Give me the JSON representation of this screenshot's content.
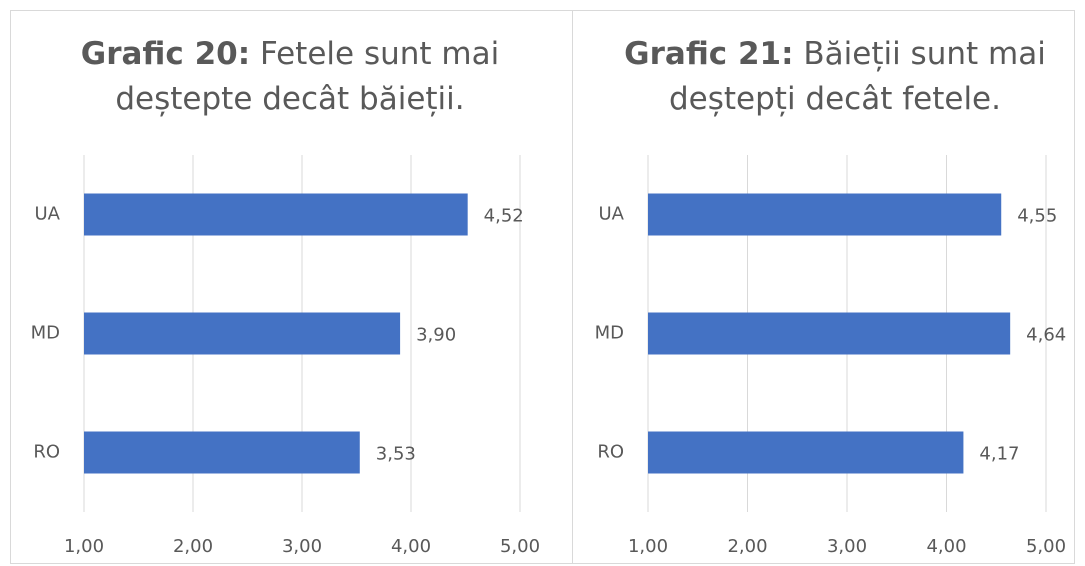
{
  "chart_data": [
    {
      "type": "bar",
      "orientation": "horizontal",
      "title_label": "Grafic 20:",
      "title": "Fetele sunt mai deștepte decât băieții.",
      "categories": [
        "UA",
        "MD",
        "RO"
      ],
      "values": [
        4.52,
        3.9,
        3.53
      ],
      "value_labels": [
        "4,52",
        "3,90",
        "3,53"
      ],
      "color": "#4472c4",
      "xlim": [
        1,
        5
      ],
      "xticks": [
        {
          "value": 1,
          "label": "1,00"
        },
        {
          "value": 2,
          "label": "2,00"
        },
        {
          "value": 3,
          "label": "3,00"
        },
        {
          "value": 4,
          "label": "4,00"
        },
        {
          "value": 5,
          "label": "5,00"
        }
      ],
      "grid": true
    },
    {
      "type": "bar",
      "orientation": "horizontal",
      "title_label": "Grafic 21:",
      "title": "Băieții sunt mai deștepți decât fetele.",
      "categories": [
        "UA",
        "MD",
        "RO"
      ],
      "values": [
        4.55,
        4.64,
        4.17
      ],
      "value_labels": [
        "4,55",
        "4,64",
        "4,17"
      ],
      "color": "#4472c4",
      "xlim": [
        1,
        5
      ],
      "xticks": [
        {
          "value": 1,
          "label": "1,00"
        },
        {
          "value": 2,
          "label": "2,00"
        },
        {
          "value": 3,
          "label": "3,00"
        },
        {
          "value": 4,
          "label": "4,00"
        },
        {
          "value": 5,
          "label": "5,00"
        }
      ],
      "grid": true
    }
  ]
}
